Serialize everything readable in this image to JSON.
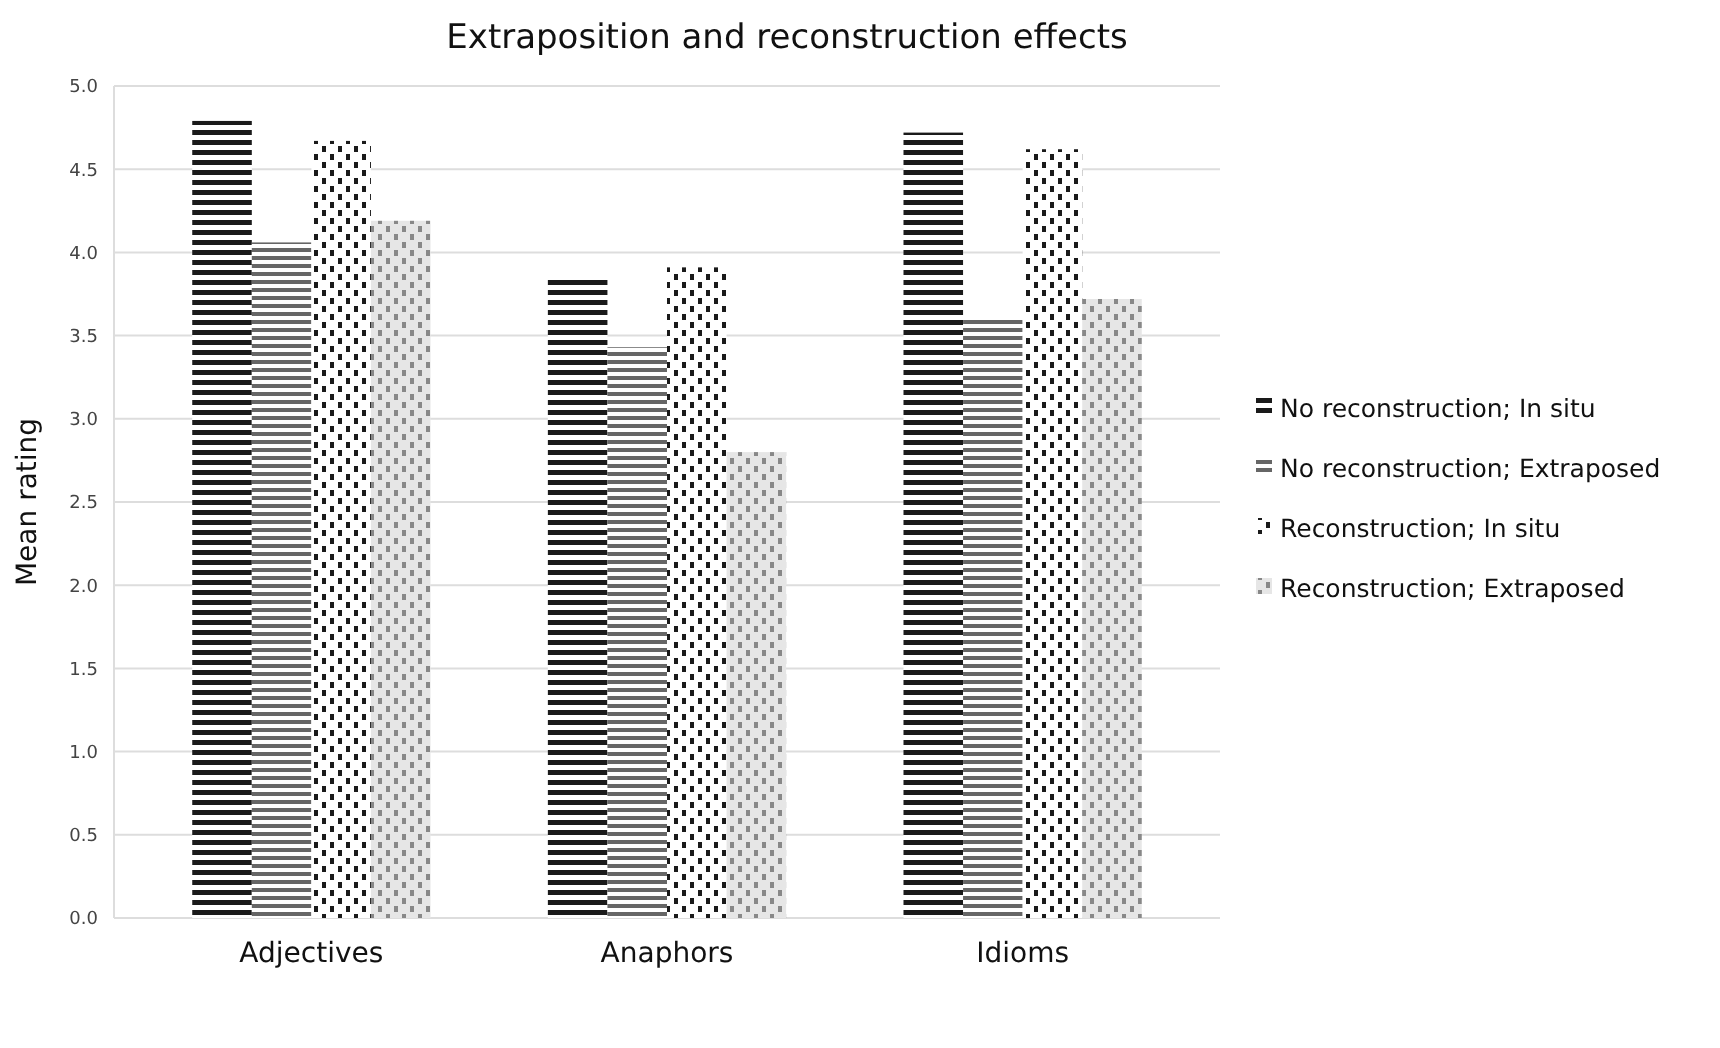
{
  "chart_data": {
    "type": "bar",
    "title": "Extraposition and reconstruction effects",
    "ylabel": "Mean rating",
    "categories": [
      "Adjectives",
      "Anaphors",
      "Idioms"
    ],
    "series": [
      {
        "name": "No reconstruction; In situ",
        "color": "#1a1a1a",
        "values": [
          4.79,
          3.85,
          4.72
        ]
      },
      {
        "name": "No reconstruction; Extraposed",
        "color": "#666666",
        "values": [
          4.06,
          3.43,
          3.61
        ]
      },
      {
        "name": "Reconstruction; In situ",
        "color": "#1a1a1a",
        "values": [
          4.67,
          3.91,
          4.62
        ]
      },
      {
        "name": "Reconstruction; Extraposed",
        "color": "#888888",
        "values": [
          4.19,
          2.8,
          3.72
        ]
      }
    ],
    "ylim": [
      0,
      5
    ],
    "yticks": [
      {
        "value": 0,
        "label": "0.0"
      },
      {
        "value": 0.5,
        "label": "0.5"
      },
      {
        "value": 1,
        "label": "1.0"
      },
      {
        "value": 1.5,
        "label": "1.5"
      },
      {
        "value": 2,
        "label": "2.0"
      },
      {
        "value": 2.5,
        "label": "2.5"
      },
      {
        "value": 3,
        "label": "3.0"
      },
      {
        "value": 3.5,
        "label": "3.5"
      },
      {
        "value": 4,
        "label": "4.0"
      },
      {
        "value": 4.5,
        "label": "4.5"
      },
      {
        "value": 5,
        "label": "5.0"
      }
    ],
    "grid": "y",
    "legend": "right"
  }
}
